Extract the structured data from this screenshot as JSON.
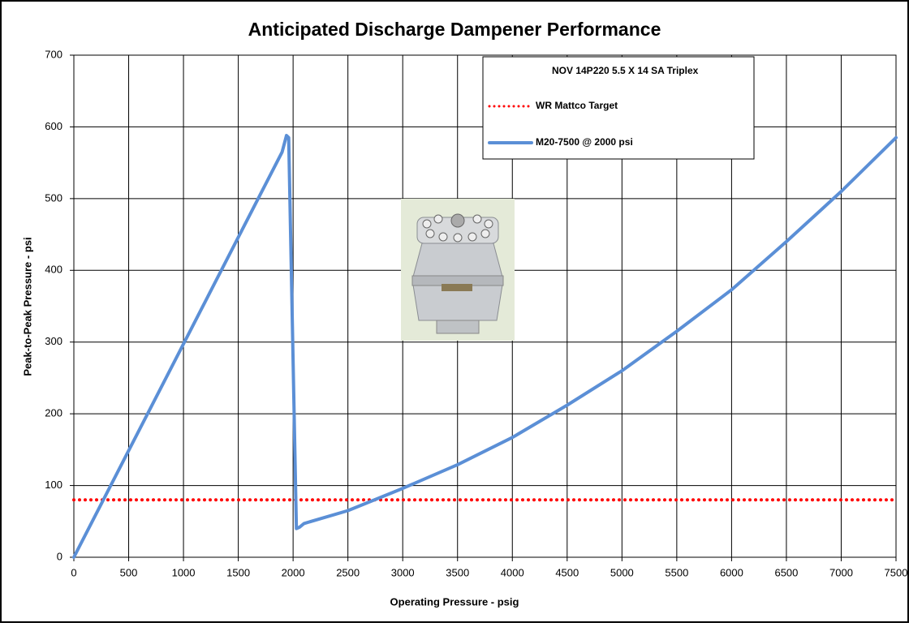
{
  "chart_data": {
    "type": "line",
    "title": "Anticipated Discharge Dampener Performance",
    "x_label": "Operating Pressure - psig",
    "y_label": "Peak-to-Peak Pressure - psi",
    "legend_title": "NOV 14P220 5.5 X 14 SA Triplex",
    "x": [
      0,
      1900,
      1940,
      1960,
      2030,
      2060,
      2100,
      2500,
      3000,
      3500,
      4000,
      4500,
      5000,
      5500,
      6000,
      6500,
      7000,
      7500
    ],
    "series": [
      {
        "name": "WR Mattco Target",
        "color": "#ff0000",
        "style": "dotted",
        "values": [
          80,
          80,
          80,
          80,
          80,
          80,
          80,
          80,
          80,
          80,
          80,
          80,
          80,
          80,
          80,
          80,
          80,
          80
        ]
      },
      {
        "name": "M20-7500 @ 2000 psi",
        "color": "#5b8fd6",
        "style": "solid",
        "values": [
          0,
          565,
          588,
          585,
          40,
          42,
          47,
          65,
          96,
          129,
          167,
          212,
          260,
          315,
          373,
          440,
          510,
          585
        ]
      }
    ],
    "xlim": [
      0,
      7500
    ],
    "xticks": [
      0,
      500,
      1000,
      1500,
      2000,
      2500,
      3000,
      3500,
      4000,
      4500,
      5000,
      5500,
      6000,
      6500,
      7000,
      7500
    ],
    "ylim": [
      0,
      700
    ],
    "yticks": [
      0,
      100,
      200,
      300,
      400,
      500,
      600,
      700
    ],
    "grid": true
  }
}
